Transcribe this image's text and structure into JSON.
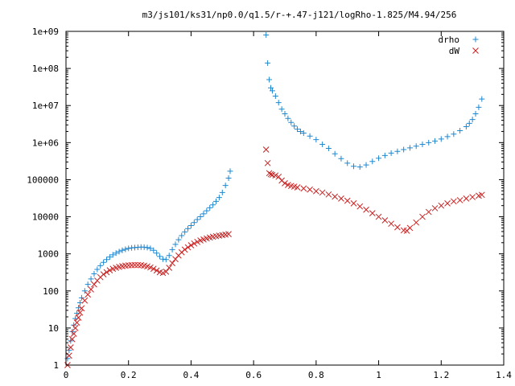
{
  "chart_data": {
    "type": "scatter",
    "title": "m3/js101/ks31/np0.0/q1.5/r-+.47-j121/logRho-1.825/M4.94/256",
    "xlabel": "",
    "ylabel": "",
    "xlim": [
      0,
      1.4
    ],
    "ylim": [
      1,
      1000000000
    ],
    "yscale": "log",
    "grid": false,
    "legend_position": "top-right",
    "x_ticks": [
      {
        "value": 0,
        "label": "0"
      },
      {
        "value": 0.2,
        "label": "0.2"
      },
      {
        "value": 0.4,
        "label": "0.4"
      },
      {
        "value": 0.6,
        "label": "0.6"
      },
      {
        "value": 0.8,
        "label": "0.8"
      },
      {
        "value": 1.0,
        "label": "1"
      },
      {
        "value": 1.2,
        "label": "1.2"
      },
      {
        "value": 1.4,
        "label": "1.4"
      }
    ],
    "y_ticks": [
      {
        "value": 1,
        "label": "1"
      },
      {
        "value": 10,
        "label": "10"
      },
      {
        "value": 100,
        "label": "100"
      },
      {
        "value": 1000,
        "label": "1000"
      },
      {
        "value": 10000,
        "label": "10000"
      },
      {
        "value": 100000,
        "label": "100000"
      },
      {
        "value": 1000000,
        "label": "1e+06"
      },
      {
        "value": 10000000,
        "label": "1e+07"
      },
      {
        "value": 100000000,
        "label": "1e+08"
      },
      {
        "value": 1000000000,
        "label": "1e+09"
      }
    ],
    "series": [
      {
        "name": "drho",
        "marker": "plus",
        "color": "#1e88d0",
        "points": [
          [
            0.005,
            1.5
          ],
          [
            0.01,
            2.5
          ],
          [
            0.015,
            4.5
          ],
          [
            0.02,
            8
          ],
          [
            0.025,
            12
          ],
          [
            0.03,
            18
          ],
          [
            0.035,
            25
          ],
          [
            0.04,
            35
          ],
          [
            0.045,
            48
          ],
          [
            0.05,
            65
          ],
          [
            0.06,
            100
          ],
          [
            0.07,
            150
          ],
          [
            0.08,
            210
          ],
          [
            0.09,
            290
          ],
          [
            0.1,
            380
          ],
          [
            0.11,
            480
          ],
          [
            0.12,
            590
          ],
          [
            0.13,
            700
          ],
          [
            0.14,
            820
          ],
          [
            0.15,
            940
          ],
          [
            0.16,
            1050
          ],
          [
            0.17,
            1150
          ],
          [
            0.18,
            1250
          ],
          [
            0.19,
            1330
          ],
          [
            0.2,
            1400
          ],
          [
            0.21,
            1450
          ],
          [
            0.22,
            1480
          ],
          [
            0.23,
            1500
          ],
          [
            0.24,
            1520
          ],
          [
            0.25,
            1510
          ],
          [
            0.26,
            1480
          ],
          [
            0.27,
            1400
          ],
          [
            0.28,
            1250
          ],
          [
            0.29,
            1050
          ],
          [
            0.3,
            850
          ],
          [
            0.31,
            720
          ],
          [
            0.32,
            700
          ],
          [
            0.33,
            900
          ],
          [
            0.34,
            1300
          ],
          [
            0.35,
            1800
          ],
          [
            0.36,
            2400
          ],
          [
            0.37,
            3100
          ],
          [
            0.38,
            3900
          ],
          [
            0.39,
            4800
          ],
          [
            0.4,
            5800
          ],
          [
            0.41,
            7000
          ],
          [
            0.42,
            8400
          ],
          [
            0.43,
            10000
          ],
          [
            0.44,
            12000
          ],
          [
            0.45,
            14500
          ],
          [
            0.46,
            17500
          ],
          [
            0.47,
            21000
          ],
          [
            0.48,
            26000
          ],
          [
            0.49,
            33000
          ],
          [
            0.5,
            45000
          ],
          [
            0.51,
            70000
          ],
          [
            0.52,
            110000
          ],
          [
            0.525,
            170000
          ],
          [
            0.64,
            800000000
          ],
          [
            0.645,
            140000000
          ],
          [
            0.65,
            50000000
          ],
          [
            0.655,
            30000000
          ],
          [
            0.66,
            25000000
          ],
          [
            0.67,
            18000000
          ],
          [
            0.68,
            12000000
          ],
          [
            0.69,
            8000000
          ],
          [
            0.7,
            6000000
          ],
          [
            0.71,
            4500000
          ],
          [
            0.72,
            3500000
          ],
          [
            0.73,
            2800000
          ],
          [
            0.74,
            2300000
          ],
          [
            0.75,
            2000000
          ],
          [
            0.76,
            1800000
          ],
          [
            0.78,
            1500000
          ],
          [
            0.8,
            1200000
          ],
          [
            0.82,
            900000
          ],
          [
            0.84,
            700000
          ],
          [
            0.86,
            500000
          ],
          [
            0.88,
            370000
          ],
          [
            0.9,
            280000
          ],
          [
            0.92,
            230000
          ],
          [
            0.94,
            220000
          ],
          [
            0.96,
            250000
          ],
          [
            0.98,
            310000
          ],
          [
            1.0,
            380000
          ],
          [
            1.02,
            450000
          ],
          [
            1.04,
            520000
          ],
          [
            1.06,
            580000
          ],
          [
            1.08,
            650000
          ],
          [
            1.1,
            720000
          ],
          [
            1.12,
            800000
          ],
          [
            1.14,
            900000
          ],
          [
            1.16,
            1000000
          ],
          [
            1.18,
            1100000
          ],
          [
            1.2,
            1250000
          ],
          [
            1.22,
            1450000
          ],
          [
            1.24,
            1700000
          ],
          [
            1.26,
            2100000
          ],
          [
            1.28,
            2700000
          ],
          [
            1.29,
            3300000
          ],
          [
            1.3,
            4200000
          ],
          [
            1.31,
            6000000
          ],
          [
            1.32,
            9000000
          ],
          [
            1.33,
            15000000
          ]
        ]
      },
      {
        "name": "dW",
        "marker": "cross",
        "color": "#cc2020",
        "points": [
          [
            0.005,
            1
          ],
          [
            0.01,
            1.8
          ],
          [
            0.015,
            3
          ],
          [
            0.02,
            5
          ],
          [
            0.025,
            7
          ],
          [
            0.03,
            10
          ],
          [
            0.035,
            14
          ],
          [
            0.04,
            19
          ],
          [
            0.045,
            26
          ],
          [
            0.05,
            34
          ],
          [
            0.06,
            55
          ],
          [
            0.07,
            80
          ],
          [
            0.08,
            110
          ],
          [
            0.09,
            150
          ],
          [
            0.1,
            190
          ],
          [
            0.11,
            235
          ],
          [
            0.12,
            280
          ],
          [
            0.13,
            320
          ],
          [
            0.14,
            360
          ],
          [
            0.15,
            395
          ],
          [
            0.16,
            420
          ],
          [
            0.17,
            445
          ],
          [
            0.18,
            465
          ],
          [
            0.19,
            480
          ],
          [
            0.2,
            490
          ],
          [
            0.21,
            495
          ],
          [
            0.22,
            500
          ],
          [
            0.23,
            500
          ],
          [
            0.24,
            495
          ],
          [
            0.25,
            480
          ],
          [
            0.26,
            460
          ],
          [
            0.27,
            430
          ],
          [
            0.28,
            395
          ],
          [
            0.29,
            355
          ],
          [
            0.3,
            320
          ],
          [
            0.31,
            305
          ],
          [
            0.32,
            330
          ],
          [
            0.33,
            420
          ],
          [
            0.34,
            560
          ],
          [
            0.35,
            720
          ],
          [
            0.36,
            900
          ],
          [
            0.37,
            1100
          ],
          [
            0.38,
            1300
          ],
          [
            0.39,
            1500
          ],
          [
            0.4,
            1700
          ],
          [
            0.41,
            1900
          ],
          [
            0.42,
            2100
          ],
          [
            0.43,
            2300
          ],
          [
            0.44,
            2450
          ],
          [
            0.45,
            2600
          ],
          [
            0.46,
            2750
          ],
          [
            0.47,
            2900
          ],
          [
            0.48,
            3000
          ],
          [
            0.49,
            3100
          ],
          [
            0.5,
            3200
          ],
          [
            0.51,
            3300
          ],
          [
            0.52,
            3400
          ],
          [
            0.64,
            650000
          ],
          [
            0.645,
            280000
          ],
          [
            0.65,
            150000
          ],
          [
            0.655,
            140000
          ],
          [
            0.66,
            135000
          ],
          [
            0.67,
            130000
          ],
          [
            0.68,
            120000
          ],
          [
            0.69,
            95000
          ],
          [
            0.7,
            80000
          ],
          [
            0.71,
            72000
          ],
          [
            0.72,
            68000
          ],
          [
            0.73,
            65000
          ],
          [
            0.74,
            62000
          ],
          [
            0.76,
            58000
          ],
          [
            0.78,
            54000
          ],
          [
            0.8,
            49000
          ],
          [
            0.82,
            45000
          ],
          [
            0.84,
            40000
          ],
          [
            0.86,
            35000
          ],
          [
            0.88,
            31000
          ],
          [
            0.9,
            27000
          ],
          [
            0.92,
            23000
          ],
          [
            0.94,
            19000
          ],
          [
            0.96,
            15500
          ],
          [
            0.98,
            12500
          ],
          [
            1.0,
            10000
          ],
          [
            1.02,
            8000
          ],
          [
            1.04,
            6500
          ],
          [
            1.06,
            5200
          ],
          [
            1.08,
            4300
          ],
          [
            1.09,
            4200
          ],
          [
            1.1,
            5000
          ],
          [
            1.12,
            7000
          ],
          [
            1.14,
            10000
          ],
          [
            1.16,
            13500
          ],
          [
            1.18,
            17000
          ],
          [
            1.2,
            20000
          ],
          [
            1.22,
            23000
          ],
          [
            1.24,
            26000
          ],
          [
            1.26,
            28000
          ],
          [
            1.28,
            31000
          ],
          [
            1.3,
            34000
          ],
          [
            1.32,
            37000
          ],
          [
            1.33,
            39000
          ]
        ]
      }
    ]
  }
}
